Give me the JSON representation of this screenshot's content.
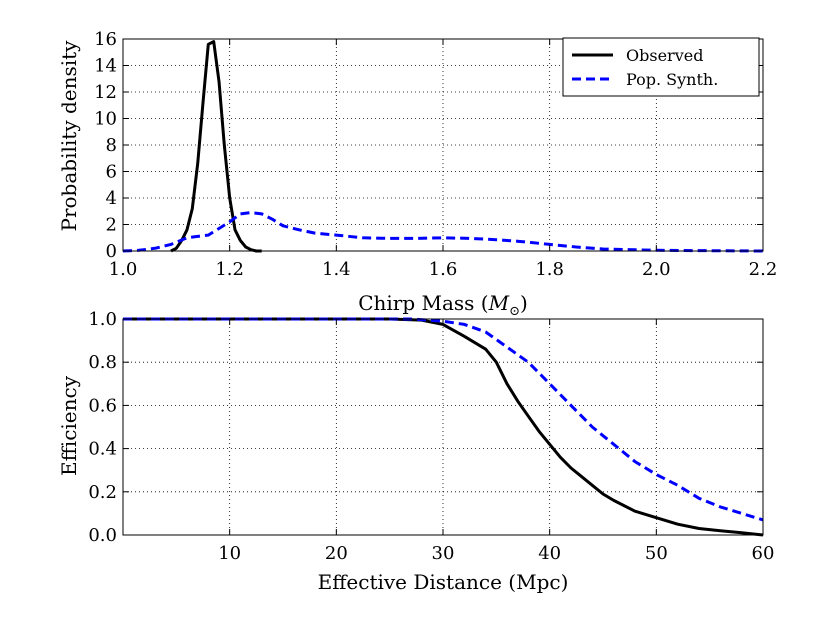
{
  "chart_data": [
    {
      "type": "line",
      "xlabel_text": "Chirp Mass (",
      "xlabel_symbol": "M",
      "xlabel_subscript": "⊙",
      "xlabel_close": ")",
      "ylabel": "Probability density",
      "xlim": [
        1.0,
        2.2
      ],
      "ylim": [
        0,
        16
      ],
      "xticks": [
        1.0,
        1.2,
        1.4,
        1.6,
        1.8,
        2.0,
        2.2
      ],
      "xtick_labels": [
        "1.0",
        "1.2",
        "1.4",
        "1.6",
        "1.8",
        "2.0",
        "2.2"
      ],
      "yticks": [
        0,
        2,
        4,
        6,
        8,
        10,
        12,
        14,
        16
      ],
      "ytick_labels": [
        "0",
        "2",
        "4",
        "6",
        "8",
        "10",
        "12",
        "14",
        "16"
      ],
      "grid": true,
      "legend_position": "top-right",
      "series": [
        {
          "name": "Observed",
          "style": "solid",
          "color": "#000000",
          "x": [
            1.09,
            1.1,
            1.11,
            1.12,
            1.13,
            1.14,
            1.15,
            1.16,
            1.17,
            1.18,
            1.19,
            1.2,
            1.21,
            1.22,
            1.23,
            1.24,
            1.25,
            1.26
          ],
          "y": [
            0,
            0.2,
            0.8,
            1.6,
            3.2,
            6.6,
            11.2,
            15.6,
            15.8,
            12.8,
            8.0,
            4.0,
            1.6,
            0.8,
            0.3,
            0.1,
            0.0,
            0.0
          ]
        },
        {
          "name": "Pop. Synth.",
          "style": "dashed",
          "color": "#0000ff",
          "x": [
            1.0,
            1.03,
            1.06,
            1.09,
            1.12,
            1.14,
            1.16,
            1.18,
            1.2,
            1.22,
            1.24,
            1.26,
            1.28,
            1.3,
            1.33,
            1.36,
            1.4,
            1.45,
            1.5,
            1.55,
            1.6,
            1.65,
            1.7,
            1.75,
            1.8,
            1.85,
            1.9,
            2.0,
            2.1,
            2.2
          ],
          "y": [
            0,
            0.05,
            0.2,
            0.5,
            1.0,
            1.1,
            1.2,
            1.7,
            2.2,
            2.8,
            2.9,
            2.8,
            2.4,
            1.9,
            1.6,
            1.35,
            1.2,
            1.0,
            0.95,
            0.95,
            1.0,
            0.95,
            0.85,
            0.7,
            0.5,
            0.3,
            0.15,
            0.05,
            0.02,
            0.0
          ]
        }
      ]
    },
    {
      "type": "line",
      "xlabel": "Effective Distance (Mpc)",
      "ylabel": "Efficiency",
      "xlim": [
        0,
        60
      ],
      "ylim": [
        0.0,
        1.0
      ],
      "xticks": [
        10,
        20,
        30,
        40,
        50,
        60
      ],
      "xtick_labels": [
        "10",
        "20",
        "30",
        "40",
        "50",
        "60"
      ],
      "yticks": [
        0.0,
        0.2,
        0.4,
        0.6,
        0.8,
        1.0
      ],
      "ytick_labels": [
        "0.0",
        "0.2",
        "0.4",
        "0.6",
        "0.8",
        "1.0"
      ],
      "grid": true,
      "series": [
        {
          "name": "Observed",
          "style": "solid",
          "color": "#000000",
          "x": [
            0,
            25,
            28,
            30,
            32,
            34,
            35,
            36,
            37,
            38,
            39,
            40,
            41,
            42,
            43,
            44,
            45,
            46,
            48,
            50,
            52,
            54,
            56,
            58,
            60
          ],
          "y": [
            1.0,
            1.0,
            0.995,
            0.975,
            0.92,
            0.86,
            0.8,
            0.7,
            0.62,
            0.55,
            0.48,
            0.42,
            0.36,
            0.31,
            0.27,
            0.23,
            0.19,
            0.16,
            0.11,
            0.08,
            0.05,
            0.03,
            0.02,
            0.01,
            0.0
          ]
        },
        {
          "name": "Pop. Synth.",
          "style": "dashed",
          "color": "#0000ff",
          "x": [
            0,
            27,
            30,
            32,
            34,
            36,
            38,
            40,
            42,
            44,
            46,
            48,
            50,
            52,
            54,
            56,
            58,
            60
          ],
          "y": [
            1.0,
            1.0,
            0.99,
            0.975,
            0.94,
            0.87,
            0.8,
            0.7,
            0.6,
            0.5,
            0.42,
            0.34,
            0.28,
            0.23,
            0.17,
            0.13,
            0.1,
            0.07
          ]
        }
      ]
    }
  ]
}
